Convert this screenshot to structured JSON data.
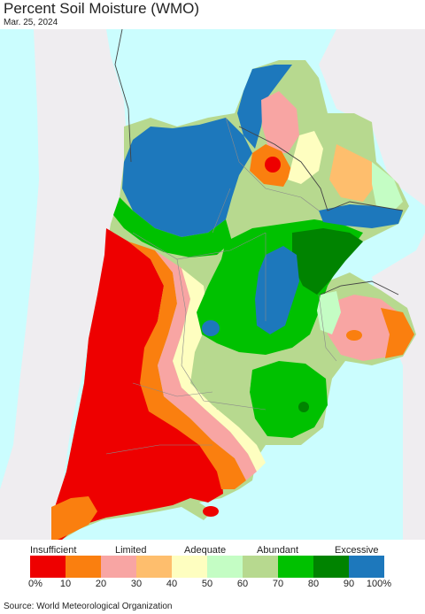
{
  "header": {
    "title": "Percent Soil Moisture (WMO)",
    "date": "Mar. 25, 2024"
  },
  "colors": {
    "ocean": "#cbfdfe",
    "land_outside": "#efedf0",
    "border": "#888888"
  },
  "legend": {
    "categories": [
      "Insufficient",
      "Limited",
      "Adequate",
      "Abundant",
      "Excessive"
    ],
    "ticks": [
      "0%",
      "10",
      "20",
      "30",
      "40",
      "50",
      "60",
      "70",
      "80",
      "90",
      "100%"
    ],
    "bins": [
      {
        "range": "0-10",
        "color": "#ee0000"
      },
      {
        "range": "10-20",
        "color": "#fa7f0f"
      },
      {
        "range": "20-30",
        "color": "#f8a5a3"
      },
      {
        "range": "30-40",
        "color": "#febe6d"
      },
      {
        "range": "40-50",
        "color": "#fefec0"
      },
      {
        "range": "50-60",
        "color": "#c4fdc4"
      },
      {
        "range": "60-70",
        "color": "#b7d98f"
      },
      {
        "range": "70-80",
        "color": "#00c100"
      },
      {
        "range": "80-90",
        "color": "#008300"
      },
      {
        "range": "90-100",
        "color": "#1d78bc"
      }
    ]
  },
  "footer": {
    "source": "Source: World Meteorological Organization"
  }
}
